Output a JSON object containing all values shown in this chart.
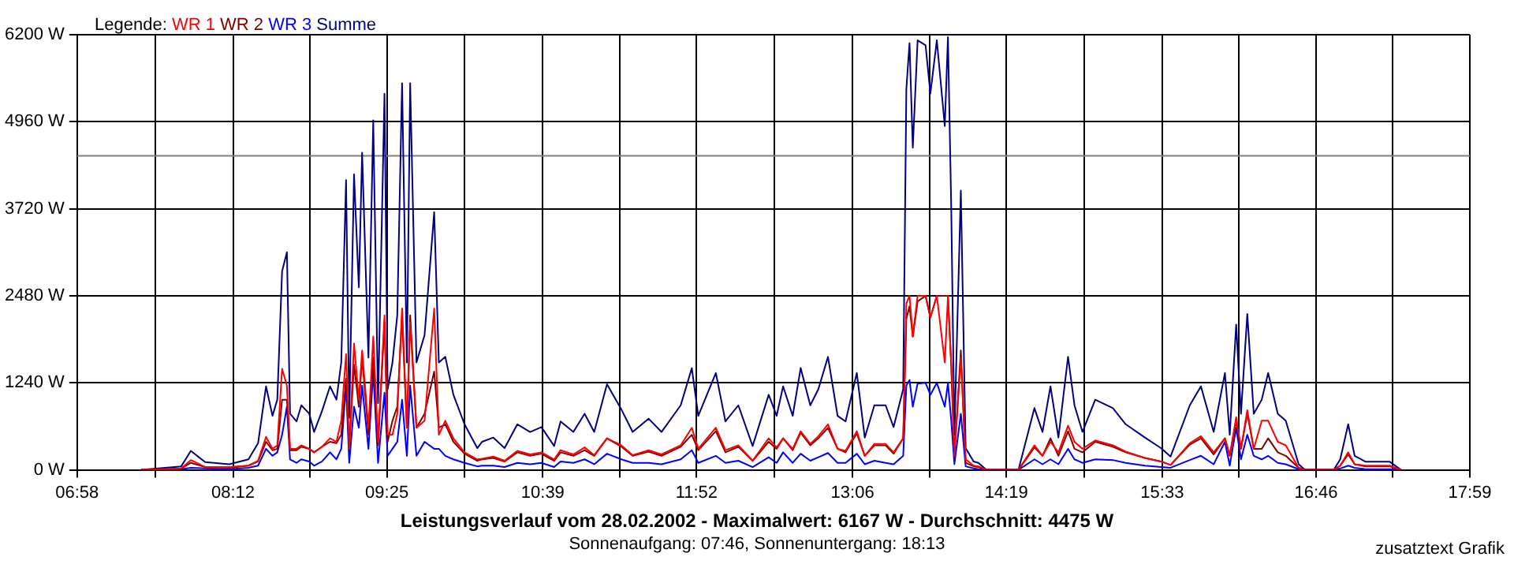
{
  "chart_data": {
    "type": "line",
    "title": "Leistungsverlauf vom 28.02.2002 - Maximalwert: 6167 W - Durchschnitt: 4475 W",
    "subtitle": "Sonnenaufgang: 07:46, Sonnenuntergang: 18:13",
    "legend_title": "Legende:",
    "annotations": [
      "zusatztext Grafik"
    ],
    "x": [
      7.473,
      7.663,
      7.79,
      7.866,
      7.98,
      8.17,
      8.322,
      8.398,
      8.461,
      8.512,
      8.55,
      8.588,
      8.626,
      8.651,
      8.702,
      8.74,
      8.803,
      8.841,
      8.904,
      8.967,
      9.018,
      9.056,
      9.094,
      9.119,
      9.157,
      9.195,
      9.221,
      9.271,
      9.309,
      9.347,
      9.398,
      9.423,
      9.461,
      9.499,
      9.537,
      9.575,
      9.601,
      9.651,
      9.715,
      9.791,
      9.828,
      9.879,
      9.943,
      10.031,
      10.132,
      10.17,
      10.259,
      10.348,
      10.449,
      10.55,
      10.639,
      10.74,
      10.791,
      10.892,
      10.981,
      11.057,
      11.158,
      11.272,
      11.361,
      11.487,
      11.589,
      11.741,
      11.829,
      11.88,
      12.019,
      12.095,
      12.197,
      12.31,
      12.437,
      12.5,
      12.551,
      12.627,
      12.69,
      12.766,
      12.83,
      12.906,
      12.982,
      13.045,
      13.134,
      13.197,
      13.273,
      13.362,
      13.425,
      13.501,
      13.526,
      13.551,
      13.577,
      13.615,
      13.678,
      13.716,
      13.767,
      13.83,
      13.855,
      13.881,
      13.906,
      13.957,
      13.995,
      14.058,
      14.096,
      14.159,
      14.413,
      14.539,
      14.603,
      14.666,
      14.729,
      14.805,
      14.856,
      14.919,
      15.02,
      15.16,
      15.261,
      15.413,
      15.54,
      15.616,
      15.768,
      15.856,
      15.957,
      16.046,
      16.084,
      16.135,
      16.173,
      16.223,
      16.274,
      16.337,
      16.388,
      16.464,
      16.527,
      16.629,
      16.679,
      16.907,
      16.958,
      17.021,
      17.072,
      17.16,
      17.35,
      17.439
    ],
    "series": [
      {
        "name": "WR 1",
        "color": "#ff0000",
        "values": [
          0,
          10,
          20,
          140,
          40,
          40,
          60,
          130,
          470,
          300,
          350,
          1440,
          1200,
          300,
          300,
          350,
          300,
          250,
          330,
          450,
          400,
          700,
          1650,
          300,
          1800,
          1000,
          1700,
          600,
          1900,
          400,
          2200,
          500,
          500,
          800,
          2300,
          600,
          2100,
          600,
          700,
          2300,
          500,
          700,
          450,
          250,
          150,
          160,
          190,
          130,
          270,
          220,
          250,
          150,
          280,
          220,
          320,
          210,
          450,
          350,
          210,
          280,
          220,
          350,
          600,
          300,
          600,
          280,
          350,
          130,
          450,
          320,
          450,
          300,
          550,
          370,
          480,
          650,
          300,
          270,
          550,
          200,
          370,
          370,
          250,
          450,
          2370,
          2480,
          1900,
          2480,
          2480,
          2170,
          2480,
          1530,
          2480,
          1500,
          200,
          1600,
          150,
          60,
          50,
          0,
          0,
          350,
          200,
          400,
          250,
          630,
          400,
          300,
          420,
          350,
          260,
          170,
          120,
          70,
          380,
          480,
          250,
          450,
          200,
          750,
          300,
          850,
          300,
          700,
          700,
          400,
          350,
          30,
          0,
          0,
          60,
          250,
          80,
          60,
          60,
          0
        ]
      },
      {
        "name": "WR 2",
        "color": "#800000",
        "values": [
          0,
          10,
          20,
          100,
          40,
          30,
          60,
          120,
          400,
          280,
          300,
          1000,
          1000,
          280,
          280,
          330,
          300,
          250,
          330,
          400,
          380,
          500,
          1300,
          300,
          1500,
          900,
          1600,
          500,
          1600,
          350,
          2100,
          400,
          700,
          900,
          2200,
          600,
          2200,
          600,
          800,
          1400,
          600,
          650,
          400,
          230,
          130,
          150,
          170,
          120,
          250,
          200,
          230,
          130,
          250,
          200,
          280,
          200,
          450,
          330,
          200,
          260,
          200,
          330,
          500,
          280,
          550,
          250,
          330,
          130,
          400,
          300,
          450,
          280,
          530,
          350,
          450,
          600,
          300,
          250,
          520,
          200,
          350,
          350,
          230,
          450,
          2150,
          2330,
          1900,
          2400,
          2480,
          2170,
          2480,
          2480,
          2480,
          1500,
          200,
          1700,
          100,
          50,
          40,
          0,
          0,
          320,
          200,
          450,
          200,
          550,
          300,
          250,
          400,
          330,
          250,
          170,
          120,
          70,
          360,
          450,
          220,
          450,
          200,
          700,
          300,
          800,
          300,
          300,
          450,
          250,
          200,
          30,
          0,
          0,
          60,
          220,
          80,
          50,
          50,
          0
        ]
      },
      {
        "name": "WR 3",
        "color": "#0000ff",
        "values": [
          0,
          10,
          10,
          30,
          20,
          10,
          30,
          60,
          300,
          200,
          250,
          500,
          900,
          150,
          100,
          150,
          120,
          60,
          120,
          250,
          150,
          300,
          1200,
          100,
          900,
          600,
          1200,
          300,
          1400,
          100,
          1100,
          200,
          300,
          400,
          1000,
          200,
          1200,
          200,
          400,
          300,
          300,
          200,
          150,
          100,
          50,
          60,
          60,
          40,
          100,
          80,
          100,
          40,
          120,
          100,
          150,
          80,
          230,
          150,
          100,
          100,
          80,
          150,
          280,
          100,
          200,
          100,
          130,
          40,
          180,
          100,
          250,
          100,
          230,
          130,
          180,
          240,
          100,
          100,
          230,
          80,
          130,
          100,
          80,
          200,
          1200,
          1280,
          900,
          1230,
          1240,
          1070,
          1240,
          900,
          1240,
          700,
          80,
          800,
          50,
          20,
          10,
          0,
          0,
          150,
          80,
          150,
          80,
          300,
          150,
          100,
          150,
          140,
          100,
          60,
          40,
          30,
          140,
          200,
          80,
          400,
          60,
          600,
          150,
          500,
          200,
          150,
          200,
          100,
          80,
          10,
          0,
          0,
          20,
          60,
          30,
          10,
          10,
          0
        ]
      },
      {
        "name": "Summe",
        "color": "#000080",
        "values": [
          0,
          30,
          50,
          270,
          110,
          80,
          150,
          380,
          1190,
          770,
          1000,
          2830,
          3100,
          800,
          690,
          920,
          800,
          540,
          840,
          1190,
          1000,
          1530,
          4130,
          740,
          4210,
          2600,
          4520,
          1600,
          4980,
          950,
          5360,
          1150,
          1530,
          2200,
          5510,
          1530,
          5510,
          1530,
          1920,
          3670,
          1530,
          1610,
          1070,
          650,
          310,
          400,
          460,
          310,
          650,
          540,
          610,
          340,
          690,
          540,
          800,
          540,
          1220,
          860,
          540,
          730,
          540,
          920,
          1450,
          770,
          1380,
          690,
          920,
          340,
          1070,
          770,
          1190,
          770,
          1450,
          920,
          1150,
          1610,
          770,
          690,
          1380,
          460,
          920,
          920,
          610,
          1150,
          5430,
          6080,
          4590,
          6120,
          6050,
          5360,
          6120,
          4900,
          6167,
          3750,
          500,
          3980,
          310,
          120,
          100,
          0,
          0,
          880,
          540,
          1190,
          460,
          1610,
          920,
          540,
          1000,
          880,
          650,
          460,
          310,
          190,
          920,
          1190,
          540,
          1380,
          500,
          2070,
          800,
          2220,
          800,
          1000,
          1380,
          800,
          700,
          80,
          0,
          0,
          150,
          650,
          200,
          115,
          115,
          0
        ]
      }
    ],
    "xlim": [
      6.9667,
      17.9833
    ],
    "xticks": [
      {
        "value": 6.9667,
        "label": "06:58"
      },
      {
        "value": 7.5833,
        "label": null
      },
      {
        "value": 8.2,
        "label": "08:12"
      },
      {
        "value": 8.8083,
        "label": null
      },
      {
        "value": 9.4167,
        "label": "09:25"
      },
      {
        "value": 10.0333,
        "label": null
      },
      {
        "value": 10.65,
        "label": "10:39"
      },
      {
        "value": 11.2583,
        "label": null
      },
      {
        "value": 11.8667,
        "label": "11:52"
      },
      {
        "value": 12.4833,
        "label": null
      },
      {
        "value": 13.1,
        "label": "13:06"
      },
      {
        "value": 13.7083,
        "label": null
      },
      {
        "value": 14.3167,
        "label": "14:19"
      },
      {
        "value": 14.9333,
        "label": null
      },
      {
        "value": 15.55,
        "label": "15:33"
      },
      {
        "value": 16.1583,
        "label": null
      },
      {
        "value": 16.7667,
        "label": "16:46"
      },
      {
        "value": 17.375,
        "label": null
      },
      {
        "value": 17.9833,
        "label": "17:59"
      }
    ],
    "ylim": [
      0,
      6200
    ],
    "yticks": [
      {
        "value": 0,
        "label": "0 W"
      },
      {
        "value": 1240,
        "label": "1240 W"
      },
      {
        "value": 2480,
        "label": "2480 W"
      },
      {
        "value": 3720,
        "label": "3720 W"
      },
      {
        "value": 4960,
        "label": "4960 W"
      },
      {
        "value": 6200,
        "label": "6200 W"
      }
    ],
    "ref_lines": [
      {
        "axis": "y",
        "value": 4475,
        "color": "#808080"
      }
    ],
    "grid": true,
    "legend": "top left",
    "marker": "none",
    "line_style": "solid"
  }
}
